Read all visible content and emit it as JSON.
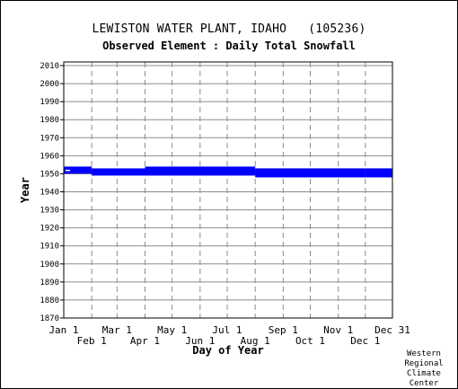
{
  "chart_data": {
    "type": "bar",
    "title": "LEWISTON WATER PLANT, IDAHO   (105236)",
    "subtitle": "Observed Element : Daily Total Snowfall",
    "xlabel": "Day of Year",
    "ylabel": "Year",
    "ylim": [
      1870,
      2012
    ],
    "xlim": [
      1,
      365
    ],
    "grid": true,
    "y_ticks": [
      1870,
      1880,
      1890,
      1900,
      1910,
      1920,
      1930,
      1940,
      1950,
      1960,
      1970,
      1980,
      1990,
      2000,
      2010
    ],
    "x_ticks_top_row": [
      {
        "label": "Jan 1",
        "day": 1
      },
      {
        "label": "Mar 1",
        "day": 60
      },
      {
        "label": "May 1",
        "day": 121
      },
      {
        "label": "Jul 1",
        "day": 182
      },
      {
        "label": "Sep 1",
        "day": 244
      },
      {
        "label": "Nov 1",
        "day": 305
      },
      {
        "label": "Dec 31",
        "day": 365
      }
    ],
    "x_ticks_bottom_row": [
      {
        "label": "Feb 1",
        "day": 32
      },
      {
        "label": "Apr 1",
        "day": 91
      },
      {
        "label": "Jun 1",
        "day": 152
      },
      {
        "label": "Aug 1",
        "day": 213
      },
      {
        "label": "Oct 1",
        "day": 274
      },
      {
        "label": "Dec 1",
        "day": 335
      }
    ],
    "series": [
      {
        "color": "#0000ff",
        "segments": [
          {
            "start": 1,
            "end": 32,
            "y0": 1950,
            "y1": 1954
          },
          {
            "start": 32,
            "end": 91,
            "y0": 1949,
            "y1": 1953
          },
          {
            "start": 91,
            "end": 213,
            "y0": 1949,
            "y1": 1954
          },
          {
            "start": 213,
            "end": 335,
            "y0": 1948,
            "y1": 1953
          },
          {
            "start": 335,
            "end": 365,
            "y0": 1948,
            "y1": 1953
          }
        ],
        "gap": {
          "start": 3,
          "end": 8,
          "year": 1952
        }
      }
    ]
  },
  "credit": "Western\nRegional\nClimate\nCenter"
}
